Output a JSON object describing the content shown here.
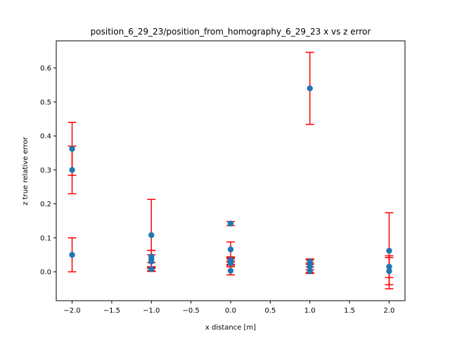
{
  "chart_data": {
    "type": "scatter",
    "title": "position_6_29_23/position_from_homography_6_29_23 x vs z error",
    "xlabel": "x distance [m]",
    "ylabel": "z true relative error",
    "xlim": [
      -2.2,
      2.2
    ],
    "ylim": [
      -0.085,
      0.68
    ],
    "xticks": [
      -2.0,
      -1.5,
      -1.0,
      -0.5,
      0.0,
      0.5,
      1.0,
      1.5,
      2.0
    ],
    "xtick_labels": [
      "−2.0",
      "−1.5",
      "−1.0",
      "−0.5",
      "0.0",
      "0.5",
      "1.0",
      "1.5",
      "2.0"
    ],
    "yticks": [
      0.0,
      0.1,
      0.2,
      0.3,
      0.4,
      0.5,
      0.6
    ],
    "ytick_labels": [
      "0.0",
      "0.1",
      "0.2",
      "0.3",
      "0.4",
      "0.5",
      "0.6"
    ],
    "grid": false,
    "marker_color": "#1f77b4",
    "errorbar_color": "#ff0000",
    "points": [
      {
        "x": -2.0,
        "y": 0.362,
        "err": 0.078
      },
      {
        "x": -2.0,
        "y": 0.3,
        "err": 0.07
      },
      {
        "x": -2.0,
        "y": 0.05,
        "err": 0.05
      },
      {
        "x": -1.0,
        "y": 0.108,
        "err": 0.105
      },
      {
        "x": -1.0,
        "y": 0.045,
        "err": 0.018
      },
      {
        "x": -1.0,
        "y": 0.038,
        "err": 0.025
      },
      {
        "x": -1.0,
        "y": 0.03,
        "err": 0.02
      },
      {
        "x": -1.0,
        "y": 0.008,
        "err": 0.007
      },
      {
        "x": 0.0,
        "y": 0.142,
        "err": 0.006
      },
      {
        "x": 0.0,
        "y": 0.066,
        "err": 0.022
      },
      {
        "x": 0.0,
        "y": 0.035,
        "err": 0.006
      },
      {
        "x": 0.0,
        "y": 0.03,
        "err": 0.008
      },
      {
        "x": 0.0,
        "y": 0.025,
        "err": 0.006
      },
      {
        "x": 0.0,
        "y": 0.003,
        "err": 0.012
      },
      {
        "x": 1.0,
        "y": 0.54,
        "err": 0.106
      },
      {
        "x": 1.0,
        "y": 0.03,
        "err": 0.008
      },
      {
        "x": 1.0,
        "y": 0.02,
        "err": 0.006
      },
      {
        "x": 1.0,
        "y": 0.015,
        "err": 0.02
      },
      {
        "x": 1.0,
        "y": 0.002,
        "err": 0.004
      },
      {
        "x": 2.0,
        "y": 0.062,
        "err": 0.112
      },
      {
        "x": 2.0,
        "y": 0.015,
        "err": 0.032
      },
      {
        "x": 2.0,
        "y": 0.002,
        "err": 0.04
      }
    ]
  }
}
